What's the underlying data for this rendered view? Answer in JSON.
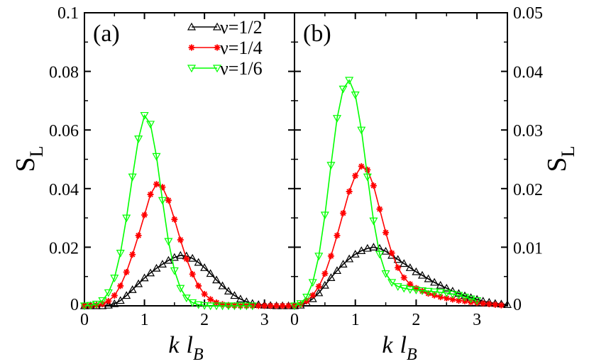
{
  "chart_data": [
    {
      "type": "line",
      "panel_label": "(a)",
      "xlabel": "k",
      "xlabel_sub": "l",
      "xlabel_subscript": "B",
      "ylabel": "S",
      "ylabel_subscript": "L",
      "xlim": [
        0,
        3.5
      ],
      "ylim": [
        0,
        0.1
      ],
      "x_ticks": [
        0,
        1,
        2,
        3
      ],
      "x_tick_labels": [
        "0",
        "1",
        "2",
        "3"
      ],
      "y_ticks": [
        0,
        0.02,
        0.04,
        0.06,
        0.08,
        0.1
      ],
      "y_tick_labels": [
        "0",
        "0.02",
        "0.04",
        "0.06",
        "0.08",
        "0.1"
      ],
      "legend": {
        "position": "top-right",
        "entries": [
          {
            "label": "ν=1/2",
            "color": "#000000",
            "marker": "triangle-up"
          },
          {
            "label": "ν=1/4",
            "color": "#ff0000",
            "marker": "star"
          },
          {
            "label": "ν=1/6",
            "color": "#00ff00",
            "marker": "triangle-down"
          }
        ]
      },
      "series": [
        {
          "name": "ν=1/2",
          "color": "#000000",
          "marker": "triangle-up",
          "x": [
            0.0,
            0.1,
            0.2,
            0.3,
            0.4,
            0.5,
            0.6,
            0.7,
            0.8,
            0.9,
            1.0,
            1.1,
            1.2,
            1.3,
            1.4,
            1.5,
            1.6,
            1.7,
            1.8,
            1.9,
            2.0,
            2.1,
            2.2,
            2.3,
            2.4,
            2.5,
            2.6,
            2.7,
            2.8,
            2.9,
            3.0,
            3.1,
            3.2,
            3.3,
            3.4
          ],
          "y": [
            0.0,
            0.0,
            0.0,
            0.0,
            0.0002,
            0.0007,
            0.0018,
            0.0035,
            0.0055,
            0.0075,
            0.0095,
            0.0112,
            0.0128,
            0.0142,
            0.0155,
            0.0165,
            0.0172,
            0.017,
            0.0162,
            0.0148,
            0.013,
            0.011,
            0.0088,
            0.0068,
            0.005,
            0.0035,
            0.0023,
            0.0014,
            0.0008,
            0.0004,
            0.0002,
            0.0001,
            0.0,
            0.0,
            0.0
          ]
        },
        {
          "name": "ν=1/4",
          "color": "#ff0000",
          "marker": "star",
          "x": [
            0.0,
            0.1,
            0.2,
            0.3,
            0.4,
            0.5,
            0.6,
            0.7,
            0.8,
            0.9,
            1.0,
            1.1,
            1.2,
            1.3,
            1.4,
            1.5,
            1.6,
            1.7,
            1.8,
            1.9,
            2.0,
            2.1,
            2.2,
            2.3,
            2.4,
            2.5,
            2.6,
            2.7,
            2.8,
            2.9,
            3.0,
            3.1,
            3.2,
            3.3,
            3.4
          ],
          "y": [
            0.0,
            0.0,
            0.0002,
            0.0006,
            0.0016,
            0.0035,
            0.0068,
            0.0115,
            0.0175,
            0.024,
            0.031,
            0.038,
            0.0415,
            0.0405,
            0.036,
            0.0295,
            0.0225,
            0.016,
            0.0108,
            0.0068,
            0.004,
            0.0022,
            0.0011,
            0.0005,
            0.0002,
            0.0001,
            0.0,
            0.0,
            0.0,
            0.0,
            0.0,
            0.0,
            0.0,
            0.0,
            0.0
          ]
        },
        {
          "name": "ν=1/6",
          "color": "#00ff00",
          "marker": "triangle-down",
          "x": [
            0.0,
            0.1,
            0.2,
            0.3,
            0.4,
            0.5,
            0.6,
            0.7,
            0.8,
            0.9,
            1.0,
            1.1,
            1.2,
            1.3,
            1.4,
            1.5,
            1.6,
            1.7,
            1.8,
            1.9,
            2.0,
            2.1,
            2.2,
            2.3,
            2.4,
            2.5,
            2.6,
            2.7,
            2.8
          ],
          "y": [
            0.0,
            0.0002,
            0.0006,
            0.0018,
            0.0045,
            0.0095,
            0.018,
            0.03,
            0.044,
            0.057,
            0.065,
            0.062,
            0.051,
            0.036,
            0.022,
            0.012,
            0.006,
            0.0027,
            0.0011,
            0.0004,
            0.0001,
            0.0,
            0.0,
            0.0,
            0.0,
            0.0,
            0.0,
            0.0,
            0.0
          ]
        }
      ]
    },
    {
      "type": "line",
      "panel_label": "(b)",
      "xlabel": "k",
      "xlabel_sub": "l",
      "xlabel_subscript": "B",
      "ylabel": "S",
      "ylabel_subscript": "L",
      "xlim": [
        0,
        3.5
      ],
      "ylim": [
        0,
        0.05
      ],
      "x_ticks": [
        0,
        1,
        2,
        3
      ],
      "x_tick_labels": [
        "0",
        "1",
        "2",
        "3"
      ],
      "y_ticks": [
        0,
        0.01,
        0.02,
        0.03,
        0.04,
        0.05
      ],
      "y_tick_labels": [
        "0",
        "0.01",
        "0.02",
        "0.03",
        "0.04",
        "0.05"
      ],
      "series": [
        {
          "name": "ν=1/2",
          "color": "#000000",
          "marker": "triangle-up",
          "x": [
            0.0,
            0.1,
            0.2,
            0.3,
            0.4,
            0.5,
            0.6,
            0.7,
            0.8,
            0.9,
            1.0,
            1.1,
            1.2,
            1.3,
            1.4,
            1.5,
            1.6,
            1.7,
            1.8,
            1.9,
            2.0,
            2.1,
            2.2,
            2.3,
            2.4,
            2.5,
            2.6,
            2.7,
            2.8,
            2.9,
            3.0,
            3.1,
            3.2,
            3.3,
            3.4,
            3.5
          ],
          "y": [
            0.0,
            0.0001,
            0.0005,
            0.0012,
            0.0022,
            0.0035,
            0.0048,
            0.006,
            0.0071,
            0.008,
            0.0088,
            0.0094,
            0.0098,
            0.01,
            0.0098,
            0.0093,
            0.0086,
            0.0079,
            0.0072,
            0.0065,
            0.0058,
            0.0052,
            0.0046,
            0.004,
            0.0035,
            0.003,
            0.0025,
            0.0021,
            0.0017,
            0.0014,
            0.0011,
            0.0008,
            0.0006,
            0.0004,
            0.0003,
            0.0002
          ]
        },
        {
          "name": "ν=1/4",
          "color": "#ff0000",
          "marker": "star",
          "x": [
            0.0,
            0.1,
            0.2,
            0.3,
            0.4,
            0.5,
            0.6,
            0.7,
            0.8,
            0.9,
            1.0,
            1.1,
            1.2,
            1.3,
            1.4,
            1.5,
            1.6,
            1.7,
            1.8,
            1.9,
            2.0,
            2.1,
            2.2,
            2.3,
            2.4,
            2.5,
            2.6,
            2.7,
            2.8,
            2.9,
            3.0,
            3.1,
            3.2,
            3.3,
            3.4
          ],
          "y": [
            0.0,
            0.0002,
            0.0008,
            0.0018,
            0.0033,
            0.0055,
            0.0085,
            0.012,
            0.0158,
            0.0195,
            0.0222,
            0.0238,
            0.0232,
            0.0205,
            0.0165,
            0.0125,
            0.009,
            0.0065,
            0.0048,
            0.0037,
            0.003,
            0.0025,
            0.0021,
            0.0018,
            0.0015,
            0.0013,
            0.0011,
            0.0009,
            0.0008,
            0.0006,
            0.0005,
            0.0004,
            0.0003,
            0.0002,
            0.0001
          ]
        },
        {
          "name": "ν=1/6",
          "color": "#00ff00",
          "marker": "triangle-down",
          "x": [
            0.0,
            0.1,
            0.2,
            0.3,
            0.4,
            0.5,
            0.6,
            0.7,
            0.8,
            0.9,
            1.0,
            1.1,
            1.2,
            1.3,
            1.4,
            1.5,
            1.6,
            1.7,
            1.8,
            1.9,
            2.0,
            2.1,
            2.2,
            2.3,
            2.4,
            2.5,
            2.6,
            2.7,
            2.8,
            2.9,
            3.0
          ],
          "y": [
            0.0,
            0.0004,
            0.0015,
            0.004,
            0.0085,
            0.0155,
            0.024,
            0.032,
            0.037,
            0.0385,
            0.036,
            0.03,
            0.022,
            0.0145,
            0.0088,
            0.0055,
            0.004,
            0.0033,
            0.003,
            0.0028,
            0.0027,
            0.0026,
            0.0025,
            0.0024,
            0.0023,
            0.0022,
            0.002,
            0.0018,
            0.0015,
            0.0012,
            0.0009
          ]
        }
      ]
    }
  ]
}
